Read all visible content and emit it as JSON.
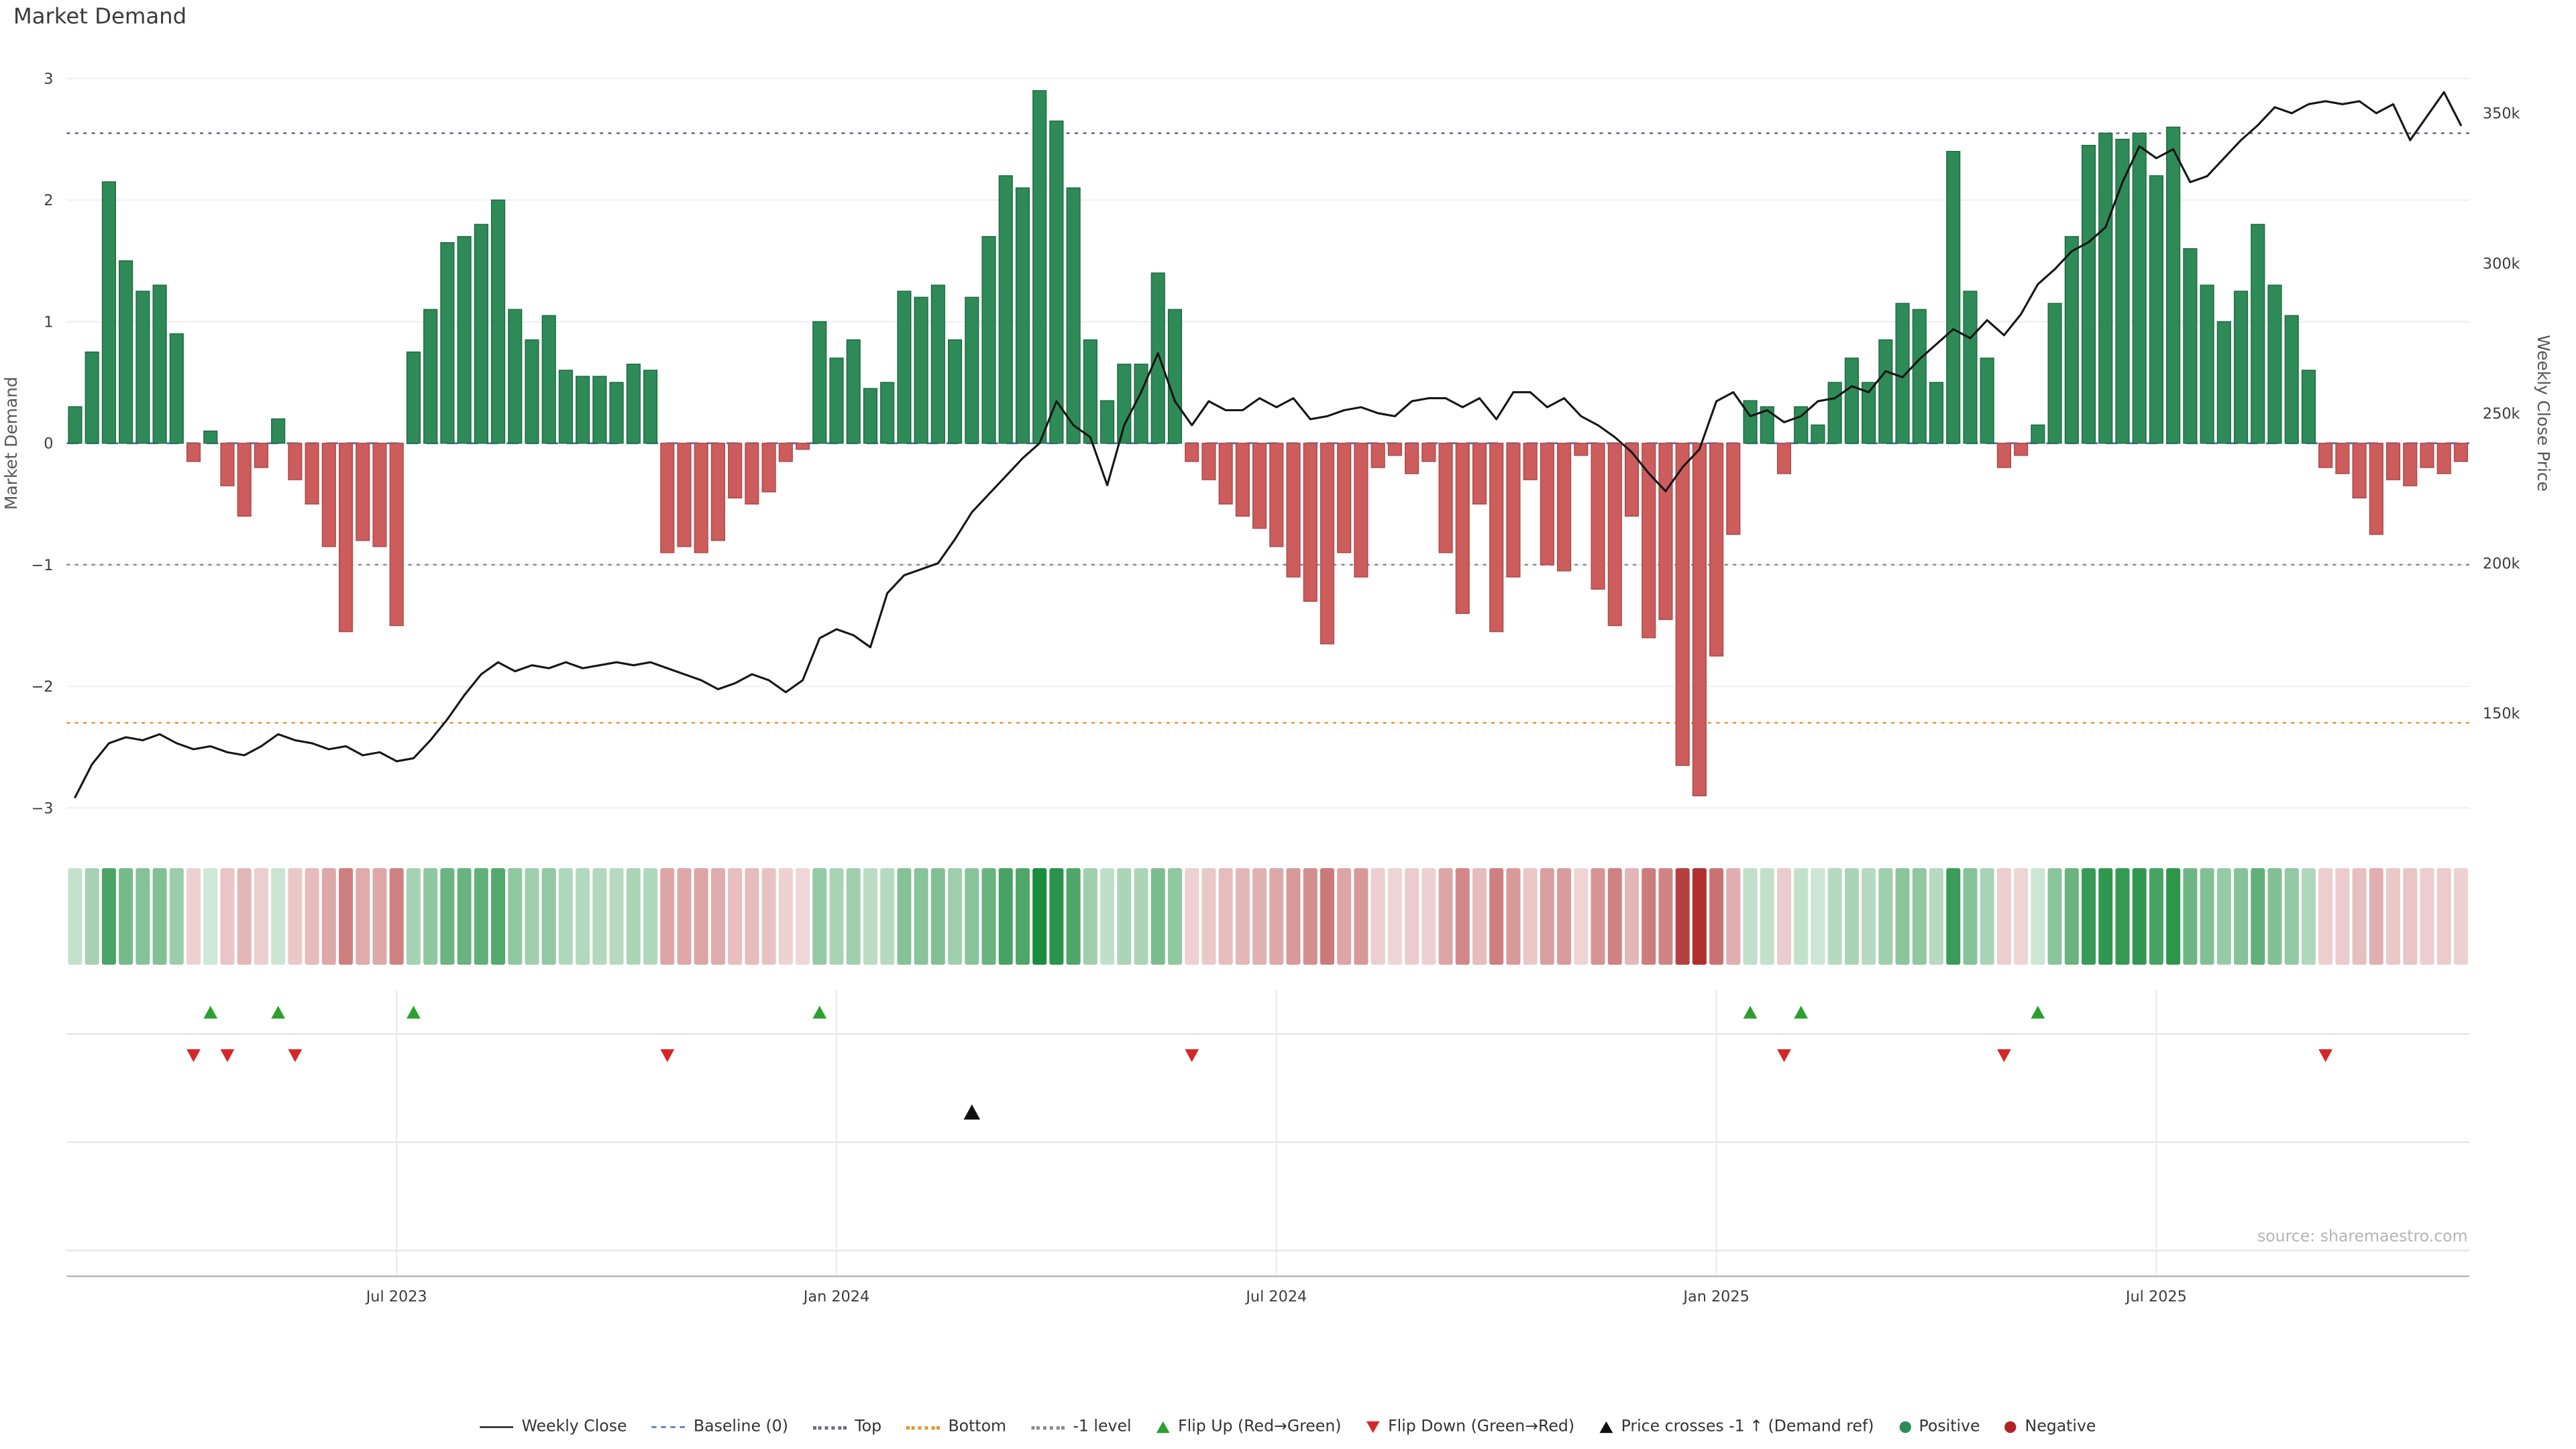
{
  "page": {
    "title": "Market Demand",
    "source": "source: sharemaestro.com"
  },
  "colors": {
    "positive_bar": "#2e8b57",
    "positive_bar_edge": "#1f6b40",
    "negative_bar": "#cd5c5c",
    "negative_bar_edge": "#ae4a4a",
    "price_line": "#161616",
    "baseline_line": "#4472b8",
    "top_line": "#5f5f7e",
    "minus1_line": "#8a8a8a",
    "bottom_line": "#e0962e",
    "grid": "#f1f1f4",
    "panel_grid": "#e6e6e6",
    "axis_line": "#b8b8b8",
    "flip_up": "#2ca02c",
    "flip_down": "#d62728",
    "price_cross": "#111111",
    "heat_green_base": "#1a8c3c",
    "heat_red_base": "#b03030"
  },
  "chart_data": {
    "type": "bar+line combo with demand heatmap strip and event marker rows",
    "title": "Market Demand",
    "n_weeks": 142,
    "series": [
      {
        "name": "Market Demand",
        "type": "bar",
        "axis": "left",
        "values": [
          0.3,
          0.75,
          2.15,
          1.5,
          1.25,
          1.3,
          0.9,
          -0.15,
          0.1,
          -0.35,
          -0.6,
          -0.2,
          0.2,
          -0.3,
          -0.5,
          -0.85,
          -1.55,
          -0.8,
          -0.85,
          -1.5,
          0.75,
          1.1,
          1.65,
          1.7,
          1.8,
          2.0,
          1.1,
          0.85,
          1.05,
          0.6,
          0.55,
          0.55,
          0.5,
          0.65,
          0.6,
          -0.9,
          -0.85,
          -0.9,
          -0.8,
          -0.45,
          -0.5,
          -0.4,
          -0.15,
          -0.05,
          1.0,
          0.7,
          0.85,
          0.45,
          0.5,
          1.25,
          1.2,
          1.3,
          0.85,
          1.2,
          1.7,
          2.2,
          2.1,
          2.9,
          2.65,
          2.1,
          0.85,
          0.35,
          0.65,
          0.65,
          1.4,
          1.1,
          -0.15,
          -0.3,
          -0.5,
          -0.6,
          -0.7,
          -0.85,
          -1.1,
          -1.3,
          -1.65,
          -0.9,
          -1.1,
          -0.2,
          -0.1,
          -0.25,
          -0.15,
          -0.9,
          -1.4,
          -0.5,
          -1.55,
          -1.1,
          -0.3,
          -1.0,
          -1.05,
          -0.1,
          -1.2,
          -1.5,
          -0.6,
          -1.6,
          -1.45,
          -2.65,
          -2.9,
          -1.75,
          -0.75,
          0.35,
          0.3,
          -0.25,
          0.3,
          0.15,
          0.5,
          0.7,
          0.5,
          0.85,
          1.15,
          1.1,
          0.5,
          2.4,
          1.25,
          0.7,
          -0.2,
          -0.1,
          0.15,
          1.15,
          1.7,
          2.45,
          2.55,
          2.5,
          2.55,
          2.2,
          2.6,
          1.6,
          1.3,
          1.0,
          1.25,
          1.8,
          1.3,
          1.05,
          0.6,
          -0.2,
          -0.25,
          -0.45,
          -0.75,
          -0.3,
          -0.35,
          -0.2,
          -0.25,
          -0.15
        ]
      },
      {
        "name": "Weekly Close",
        "type": "line",
        "axis": "right",
        "unit": "k",
        "values": [
          122,
          133,
          140,
          142,
          141,
          143,
          140,
          138,
          139,
          137,
          136,
          139,
          143,
          141,
          140,
          138,
          139,
          136,
          137,
          134,
          135,
          141,
          148,
          156,
          163,
          167,
          164,
          166,
          165,
          167,
          165,
          166,
          167,
          166,
          167,
          165,
          163,
          161,
          158,
          160,
          163,
          161,
          157,
          161,
          175,
          178,
          176,
          172,
          190,
          196,
          198,
          200,
          208,
          217,
          223,
          229,
          235,
          240,
          254,
          246,
          242,
          226,
          246,
          257,
          270,
          254,
          246,
          254,
          251,
          251,
          255,
          252,
          255,
          248,
          249,
          251,
          252,
          250,
          249,
          254,
          255,
          255,
          252,
          255,
          248,
          257,
          257,
          252,
          255,
          249,
          246,
          242,
          237,
          230,
          224,
          232,
          238,
          254,
          257,
          249,
          251,
          247,
          249,
          254,
          255,
          259,
          257,
          264,
          262,
          268,
          273,
          278,
          275,
          281,
          276,
          283,
          293,
          298,
          304,
          307,
          312,
          327,
          339,
          335,
          338,
          327,
          329,
          335,
          341,
          346,
          352,
          350,
          353,
          354,
          353,
          354,
          350,
          353,
          341,
          349,
          357,
          346
        ]
      }
    ],
    "ref_lines": {
      "baseline": 0,
      "top": 2.55,
      "minus1": -1,
      "bottom": -2.3
    },
    "left_axis": {
      "label": "Market Demand",
      "min": -3.07,
      "max": 3.07,
      "ticks": [
        {
          "v": 3,
          "label": "3"
        },
        {
          "v": 2,
          "label": "2"
        },
        {
          "v": 1,
          "label": "1"
        },
        {
          "v": 0,
          "label": "0"
        },
        {
          "v": -1,
          "label": "−1"
        },
        {
          "v": -2,
          "label": "−2"
        },
        {
          "v": -3,
          "label": "−3"
        }
      ]
    },
    "right_axis": {
      "label": "Weekly Close Price",
      "min_k": 115.6,
      "max_k": 364.4,
      "ticks": [
        {
          "v": 350,
          "label": "350k"
        },
        {
          "v": 300,
          "label": "300k"
        },
        {
          "v": 250,
          "label": "250k"
        },
        {
          "v": 200,
          "label": "200k"
        },
        {
          "v": 150,
          "label": "150k"
        }
      ]
    },
    "x_ticks": [
      {
        "week": 19,
        "label": "Jul 2023"
      },
      {
        "week": 45,
        "label": "Jan 2024"
      },
      {
        "week": 71,
        "label": "Jul 2024"
      },
      {
        "week": 97,
        "label": "Jan 2025"
      },
      {
        "week": 123,
        "label": "Jul 2025"
      }
    ],
    "markers": {
      "flip_up_weeks": [
        8,
        12,
        20,
        44,
        99,
        102,
        116
      ],
      "flip_down_weeks": [
        7,
        9,
        13,
        35,
        66,
        101,
        114,
        133
      ],
      "price_cross_weeks": [
        53
      ]
    },
    "heatmap": {
      "source": "demand",
      "max_abs": 2.9
    }
  },
  "legend": {
    "items": [
      {
        "label": "Weekly Close",
        "swatch": "solid",
        "color": "#1a1a1a"
      },
      {
        "label": "Baseline (0)",
        "swatch": "dashed",
        "color": "#4472b8"
      },
      {
        "label": "Top",
        "swatch": "dotted",
        "color": "#6a6a85"
      },
      {
        "label": "Bottom",
        "swatch": "dotted",
        "color": "#e0962e"
      },
      {
        "label": "-1 level",
        "swatch": "dotted",
        "color": "#8a8a8a"
      },
      {
        "label": "Flip Up (Red→Green)",
        "swatch": "tri-up",
        "color": "#2ca02c"
      },
      {
        "label": "Flip Down (Green→Red)",
        "swatch": "tri-down",
        "color": "#d62728"
      },
      {
        "label": "Price crosses -1 ↑ (Demand ref)",
        "swatch": "tri-up",
        "color": "#111111"
      },
      {
        "label": "Positive",
        "swatch": "circle",
        "color": "#2e8b57"
      },
      {
        "label": "Negative",
        "swatch": "circle",
        "color": "#b22222"
      }
    ]
  }
}
